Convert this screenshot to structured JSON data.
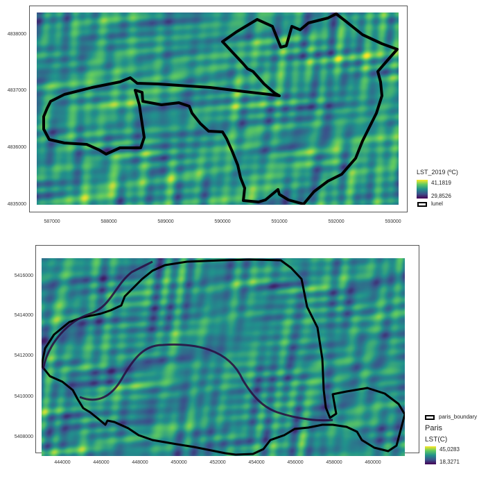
{
  "lunel_map": {
    "y_ticks": [
      "4838000",
      "4837000",
      "4836000",
      "4835000"
    ],
    "x_ticks": [
      "587000",
      "588000",
      "589000",
      "590000",
      "591000",
      "592000",
      "593000"
    ],
    "legend": {
      "title": "LST_2019 (ºC)",
      "max": "41,1819",
      "min": "29,8526",
      "boundary_label": "lunel"
    }
  },
  "paris_map": {
    "y_ticks": [
      "5416000",
      "5414000",
      "5412000",
      "5410000",
      "5408000"
    ],
    "x_ticks": [
      "444000",
      "446000",
      "448000",
      "450000",
      "452000",
      "454000",
      "456000",
      "458000",
      "460000"
    ],
    "legend": {
      "boundary_label": "paris_boundary",
      "group_title": "Paris",
      "title": "LST(C)",
      "max": "45,0283",
      "min": "18,3271"
    }
  },
  "colors": {
    "colormap": [
      "#440154",
      "#3b528b",
      "#21918c",
      "#5ec962",
      "#fde725"
    ],
    "boundary": "#000000"
  }
}
